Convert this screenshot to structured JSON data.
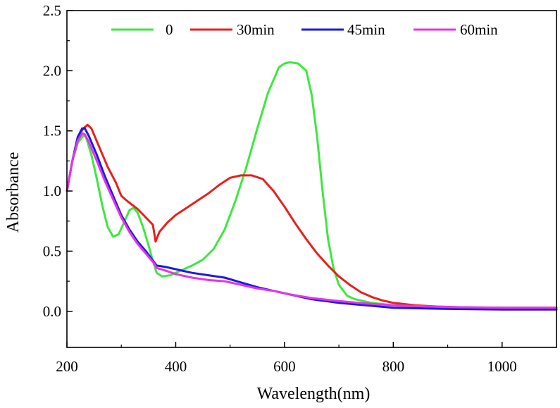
{
  "chart_data": {
    "type": "line",
    "title": "",
    "xlabel": "Wavelength(nm)",
    "ylabel": "Absorbance",
    "xlim": [
      200,
      1100
    ],
    "ylim": [
      -0.3,
      2.5
    ],
    "xticks": [
      200,
      400,
      600,
      800,
      1000
    ],
    "xtick_labels": [
      "200",
      "400",
      "600",
      "800",
      "1000"
    ],
    "yticks": [
      0.0,
      0.5,
      1.0,
      1.5,
      2.0,
      2.5
    ],
    "ytick_labels": [
      "0.0",
      "0.5",
      "1.0",
      "1.5",
      "2.0",
      "2.5"
    ],
    "grid": false,
    "legend_position": "top",
    "series": [
      {
        "name": "0",
        "color": "#3ee83e",
        "points": [
          [
            200,
            1.0
          ],
          [
            210,
            1.25
          ],
          [
            220,
            1.4
          ],
          [
            230,
            1.46
          ],
          [
            235,
            1.45
          ],
          [
            245,
            1.3
          ],
          [
            255,
            1.1
          ],
          [
            265,
            0.88
          ],
          [
            275,
            0.7
          ],
          [
            285,
            0.62
          ],
          [
            295,
            0.64
          ],
          [
            305,
            0.74
          ],
          [
            315,
            0.84
          ],
          [
            322,
            0.86
          ],
          [
            330,
            0.82
          ],
          [
            340,
            0.7
          ],
          [
            350,
            0.55
          ],
          [
            358,
            0.42
          ],
          [
            365,
            0.32
          ],
          [
            375,
            0.29
          ],
          [
            390,
            0.3
          ],
          [
            410,
            0.34
          ],
          [
            430,
            0.38
          ],
          [
            450,
            0.43
          ],
          [
            470,
            0.52
          ],
          [
            490,
            0.68
          ],
          [
            510,
            0.92
          ],
          [
            530,
            1.2
          ],
          [
            550,
            1.52
          ],
          [
            570,
            1.82
          ],
          [
            590,
            2.03
          ],
          [
            600,
            2.06
          ],
          [
            610,
            2.07
          ],
          [
            625,
            2.06
          ],
          [
            640,
            2.0
          ],
          [
            650,
            1.8
          ],
          [
            660,
            1.45
          ],
          [
            670,
            1.0
          ],
          [
            680,
            0.6
          ],
          [
            690,
            0.36
          ],
          [
            700,
            0.22
          ],
          [
            715,
            0.13
          ],
          [
            730,
            0.1
          ],
          [
            760,
            0.07
          ],
          [
            800,
            0.05
          ],
          [
            850,
            0.04
          ],
          [
            900,
            0.035
          ],
          [
            1000,
            0.03
          ],
          [
            1100,
            0.03
          ]
        ]
      },
      {
        "name": "30min",
        "color": "#e8201c",
        "points": [
          [
            200,
            1.0
          ],
          [
            210,
            1.25
          ],
          [
            220,
            1.45
          ],
          [
            230,
            1.52
          ],
          [
            238,
            1.55
          ],
          [
            245,
            1.52
          ],
          [
            260,
            1.36
          ],
          [
            275,
            1.2
          ],
          [
            290,
            1.07
          ],
          [
            300,
            0.96
          ],
          [
            310,
            0.92
          ],
          [
            330,
            0.85
          ],
          [
            345,
            0.78
          ],
          [
            358,
            0.72
          ],
          [
            363,
            0.58
          ],
          [
            370,
            0.66
          ],
          [
            385,
            0.74
          ],
          [
            400,
            0.8
          ],
          [
            420,
            0.86
          ],
          [
            440,
            0.92
          ],
          [
            460,
            0.98
          ],
          [
            480,
            1.05
          ],
          [
            500,
            1.11
          ],
          [
            520,
            1.13
          ],
          [
            540,
            1.13
          ],
          [
            560,
            1.1
          ],
          [
            580,
            1.0
          ],
          [
            600,
            0.87
          ],
          [
            620,
            0.73
          ],
          [
            640,
            0.6
          ],
          [
            660,
            0.48
          ],
          [
            680,
            0.38
          ],
          [
            700,
            0.29
          ],
          [
            720,
            0.22
          ],
          [
            740,
            0.16
          ],
          [
            760,
            0.12
          ],
          [
            780,
            0.09
          ],
          [
            800,
            0.07
          ],
          [
            840,
            0.05
          ],
          [
            880,
            0.04
          ],
          [
            950,
            0.03
          ],
          [
            1100,
            0.03
          ]
        ]
      },
      {
        "name": "45min",
        "color": "#1a1ae6",
        "points": [
          [
            200,
            1.0
          ],
          [
            210,
            1.25
          ],
          [
            220,
            1.45
          ],
          [
            228,
            1.52
          ],
          [
            233,
            1.52
          ],
          [
            240,
            1.46
          ],
          [
            255,
            1.3
          ],
          [
            270,
            1.12
          ],
          [
            285,
            0.96
          ],
          [
            300,
            0.8
          ],
          [
            315,
            0.68
          ],
          [
            330,
            0.58
          ],
          [
            345,
            0.5
          ],
          [
            360,
            0.41
          ],
          [
            365,
            0.38
          ],
          [
            380,
            0.37
          ],
          [
            400,
            0.35
          ],
          [
            430,
            0.32
          ],
          [
            460,
            0.3
          ],
          [
            490,
            0.28
          ],
          [
            520,
            0.24
          ],
          [
            550,
            0.2
          ],
          [
            580,
            0.17
          ],
          [
            610,
            0.14
          ],
          [
            650,
            0.1
          ],
          [
            700,
            0.07
          ],
          [
            750,
            0.05
          ],
          [
            800,
            0.03
          ],
          [
            900,
            0.02
          ],
          [
            1000,
            0.015
          ],
          [
            1100,
            0.015
          ]
        ]
      },
      {
        "name": "60min",
        "color": "#e832e8",
        "points": [
          [
            200,
            1.0
          ],
          [
            210,
            1.25
          ],
          [
            220,
            1.42
          ],
          [
            228,
            1.48
          ],
          [
            233,
            1.47
          ],
          [
            240,
            1.41
          ],
          [
            255,
            1.25
          ],
          [
            270,
            1.08
          ],
          [
            285,
            0.93
          ],
          [
            300,
            0.78
          ],
          [
            315,
            0.66
          ],
          [
            330,
            0.56
          ],
          [
            345,
            0.48
          ],
          [
            360,
            0.4
          ],
          [
            365,
            0.36
          ],
          [
            380,
            0.34
          ],
          [
            400,
            0.31
          ],
          [
            430,
            0.28
          ],
          [
            460,
            0.26
          ],
          [
            490,
            0.25
          ],
          [
            520,
            0.22
          ],
          [
            550,
            0.19
          ],
          [
            580,
            0.17
          ],
          [
            610,
            0.14
          ],
          [
            650,
            0.11
          ],
          [
            700,
            0.085
          ],
          [
            750,
            0.065
          ],
          [
            800,
            0.05
          ],
          [
            900,
            0.035
          ],
          [
            1000,
            0.03
          ],
          [
            1100,
            0.03
          ]
        ]
      }
    ]
  }
}
